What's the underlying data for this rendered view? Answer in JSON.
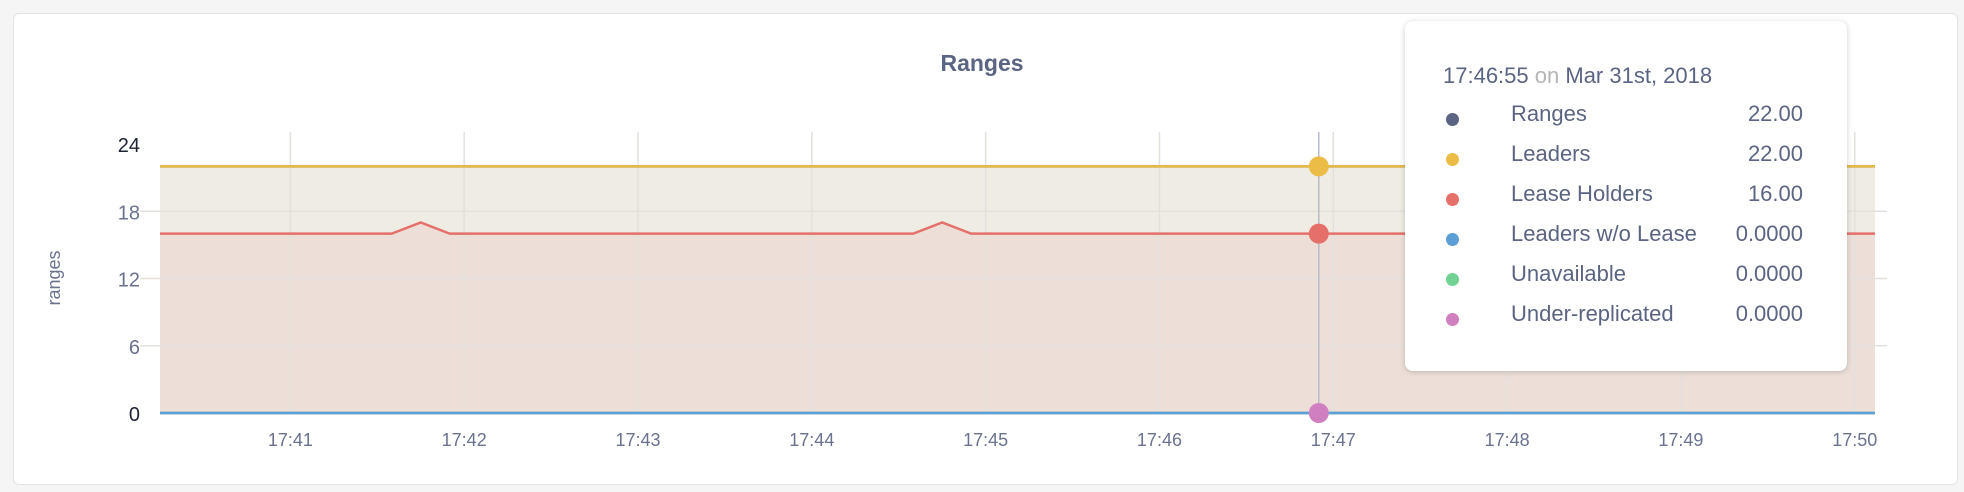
{
  "chart_data": {
    "type": "area",
    "title": "Ranges",
    "ylabel": "ranges",
    "xlabel": "",
    "ylim": [
      0,
      24
    ],
    "yticks": [
      "0",
      "6",
      "12",
      "18",
      "24"
    ],
    "xlim": [
      "17:40:15",
      "17:50:07"
    ],
    "xticks": [
      "17:41",
      "17:42",
      "17:43",
      "17:44",
      "17:45",
      "17:46",
      "17:47",
      "17:48",
      "17:49",
      "17:50"
    ],
    "grid": true,
    "series": [
      {
        "name": "Ranges",
        "color": "#5b6482",
        "points": [
          [
            "17:40:15",
            22
          ],
          [
            "17:50:07",
            22
          ]
        ]
      },
      {
        "name": "Leaders",
        "color": "#ebbd46",
        "points": [
          [
            "17:40:15",
            22
          ],
          [
            "17:50:07",
            22
          ]
        ]
      },
      {
        "name": "Lease Holders",
        "color": "#e5706a",
        "points": [
          [
            "17:40:15",
            16
          ],
          [
            "17:41:35",
            16
          ],
          [
            "17:41:45",
            17
          ],
          [
            "17:41:55",
            16
          ],
          [
            "17:44:35",
            16
          ],
          [
            "17:44:45",
            17
          ],
          [
            "17:44:55",
            16
          ],
          [
            "17:50:07",
            16
          ]
        ]
      },
      {
        "name": "Leaders w/o Lease",
        "color": "#5c9fd6",
        "points": [
          [
            "17:40:15",
            0
          ],
          [
            "17:50:07",
            0
          ]
        ]
      },
      {
        "name": "Unavailable",
        "color": "#72d291",
        "points": [
          [
            "17:40:15",
            0
          ],
          [
            "17:50:07",
            0
          ]
        ]
      },
      {
        "name": "Under-replicated",
        "color": "#d080c0",
        "points": [
          [
            "17:40:15",
            0
          ],
          [
            "17:50:07",
            0
          ]
        ]
      }
    ],
    "hover": {
      "time": "17:46:55",
      "date": "Mar 31st, 2018",
      "on": "on",
      "rows": [
        {
          "label": "Ranges",
          "value": "22.00",
          "color": "#5b6482"
        },
        {
          "label": "Leaders",
          "value": "22.00",
          "color": "#ebbd46"
        },
        {
          "label": "Lease Holders",
          "value": "16.00",
          "color": "#e5706a"
        },
        {
          "label": "Leaders w/o Lease",
          "value": "0.0000",
          "color": "#5c9fd6"
        },
        {
          "label": "Unavailable",
          "value": "0.0000",
          "color": "#72d291"
        },
        {
          "label": "Under-replicated",
          "value": "0.0000",
          "color": "#d080c0"
        }
      ]
    }
  }
}
